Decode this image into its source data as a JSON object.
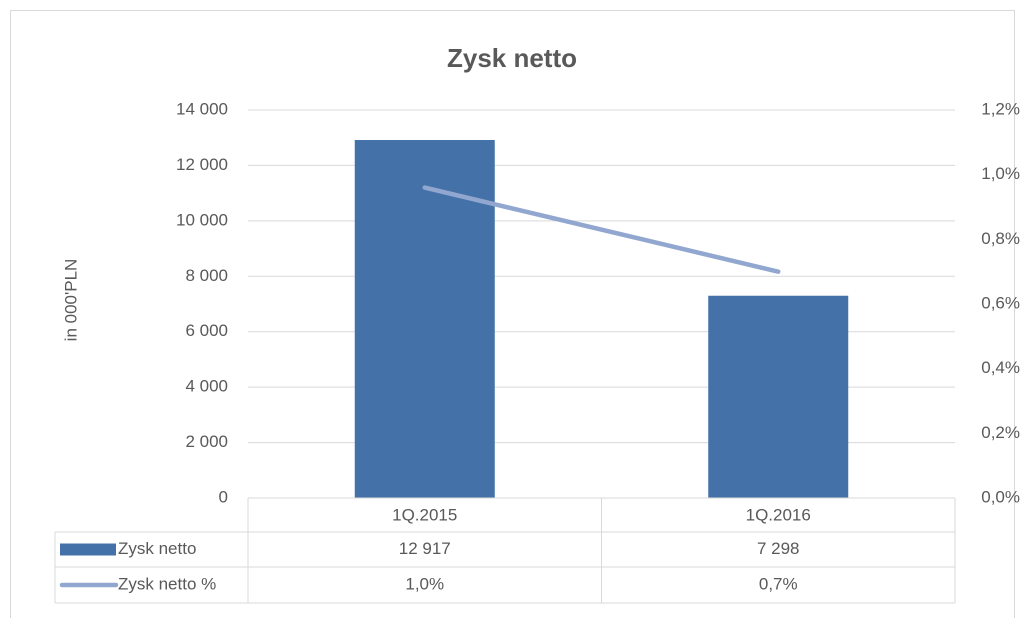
{
  "chart_data": {
    "type": "bar",
    "title": "Zysk netto",
    "y_label": "in 000'PLN",
    "categories": [
      "1Q.2015",
      "1Q.2016"
    ],
    "series": [
      {
        "name": "Zysk netto",
        "type": "bar",
        "color": "#4472a8",
        "values": [
          12917,
          7298
        ],
        "value_labels": [
          "12 917",
          "7 298"
        ]
      },
      {
        "name": "Zysk netto %",
        "type": "line",
        "axis": "y2",
        "color": "#91a7d0",
        "values": [
          0.96,
          0.7
        ],
        "value_labels": [
          "1,0%",
          "0,7%"
        ]
      }
    ],
    "ylim": [
      0,
      14000
    ],
    "yticks": [
      0,
      {
        "value": 2000,
        "label": "2 000"
      },
      {
        "value": 4000,
        "label": "4 000"
      },
      {
        "value": 6000,
        "label": "6 000"
      },
      {
        "value": 8000,
        "label": "8 000"
      },
      {
        "value": 10000,
        "label": "10 000"
      },
      {
        "value": 12000,
        "label": "12 000"
      },
      {
        "value": 14000,
        "label": "14 000"
      }
    ],
    "y2lim": [
      0,
      1.2
    ],
    "y2ticks": [
      {
        "value": 0,
        "label": "0,0%"
      },
      {
        "value": 0.2,
        "label": "0,2%"
      },
      {
        "value": 0.4,
        "label": "0,4%"
      },
      {
        "value": 0.6,
        "label": "0,6%"
      },
      {
        "value": 0.8,
        "label": "0,8%"
      },
      {
        "value": 1.0,
        "label": "1,0%"
      },
      {
        "value": 1.2,
        "label": "1,2%"
      }
    ],
    "grid": true
  }
}
